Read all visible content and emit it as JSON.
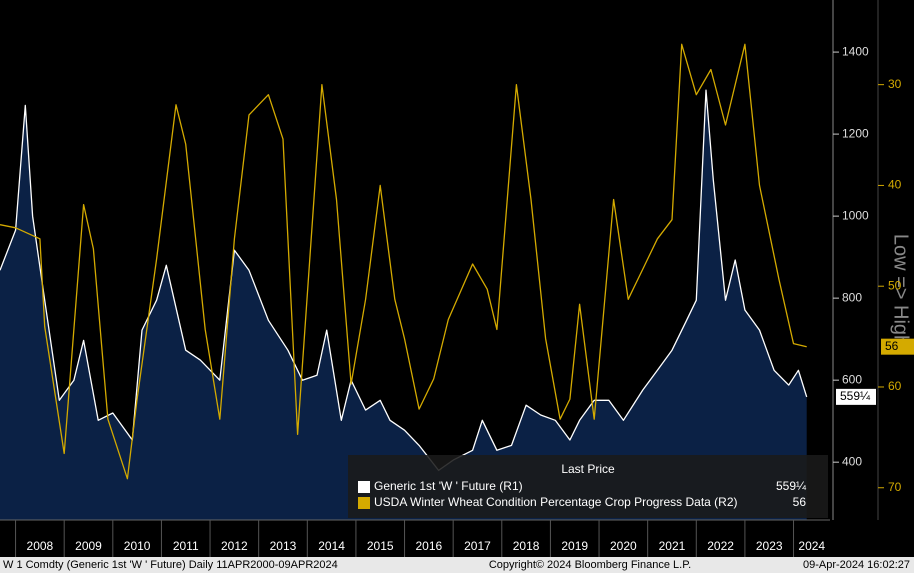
{
  "chart_data": {
    "type": "line",
    "legend_title": "Last Price",
    "axis_label_right": "Low => High",
    "footer_left": "W 1 Comdty (Generic 1st 'W ' Future)  Daily 11APR2000-09APR2024",
    "footer_center": "Copyright© 2024 Bloomberg Finance L.P.",
    "footer_right": "09-Apr-2024 16:02:27",
    "xlim": [
      2007.68,
      2024.75
    ],
    "xticks": [
      2008,
      2009,
      2010,
      2011,
      2012,
      2013,
      2014,
      2015,
      2016,
      2017,
      2018,
      2019,
      2020,
      2021,
      2022,
      2023,
      2024
    ],
    "ylim": [
      259,
      1527
    ],
    "yticks": [
      400,
      600,
      800,
      1000,
      1200,
      1400
    ],
    "y2lim": [
      73.2,
      21.6
    ],
    "y2ticks": [
      30,
      40,
      50,
      60,
      70
    ],
    "series": [
      {
        "name": "Generic 1st 'W ' Future  (R1)",
        "color": "#ffffff",
        "area_color": "#0b2145",
        "axis": "y",
        "last_label": "559¼",
        "x": [
          2007.68,
          2008.0,
          2008.2,
          2008.35,
          2008.6,
          2008.9,
          2009.2,
          2009.4,
          2009.7,
          2010.0,
          2010.4,
          2010.6,
          2010.9,
          2011.1,
          2011.5,
          2011.8,
          2012.2,
          2012.5,
          2012.8,
          2013.2,
          2013.6,
          2013.9,
          2014.2,
          2014.4,
          2014.7,
          2014.9,
          2015.2,
          2015.5,
          2015.7,
          2016.0,
          2016.3,
          2016.7,
          2017.0,
          2017.4,
          2017.6,
          2017.9,
          2018.2,
          2018.5,
          2018.8,
          2019.1,
          2019.4,
          2019.6,
          2019.9,
          2020.2,
          2020.5,
          2020.9,
          2021.2,
          2021.5,
          2021.8,
          2022.0,
          2022.2,
          2022.35,
          2022.6,
          2022.8,
          2023.0,
          2023.3,
          2023.6,
          2023.9,
          2024.1,
          2024.27
        ],
        "values": [
          868,
          966,
          1270,
          1000,
          795,
          551,
          600,
          697,
          502,
          520,
          454,
          722,
          795,
          880,
          673,
          649,
          600,
          917,
          868,
          746,
          673,
          600,
          612,
          722,
          502,
          600,
          527,
          551,
          502,
          478,
          441,
          380,
          405,
          429,
          502,
          429,
          441,
          539,
          515,
          502,
          454,
          502,
          551,
          551,
          502,
          576,
          624,
          673,
          746,
          795,
          1307,
          1088,
          795,
          893,
          771,
          722,
          624,
          588,
          624,
          559.25
        ]
      },
      {
        "name": "USDA Winter Wheat Condition Percentage Crop Progress Data  (R2)",
        "color": "#d4aa00",
        "axis": "y2",
        "last_label": "56",
        "x": [
          2007.68,
          2008.0,
          2008.5,
          2008.6,
          2009.0,
          2009.4,
          2009.6,
          2009.9,
          2010.3,
          2010.5,
          2010.9,
          2011.3,
          2011.5,
          2011.9,
          2012.2,
          2012.5,
          2012.8,
          2013.2,
          2013.5,
          2013.8,
          2014.3,
          2014.6,
          2014.9,
          2015.2,
          2015.5,
          2015.8,
          2016.0,
          2016.3,
          2016.6,
          2016.9,
          2017.4,
          2017.7,
          2017.9,
          2018.3,
          2018.6,
          2018.9,
          2019.2,
          2019.4,
          2019.6,
          2019.9,
          2020.3,
          2020.6,
          2020.9,
          2021.2,
          2021.5,
          2021.7,
          2022.0,
          2022.3,
          2022.6,
          2023.0,
          2023.3,
          2023.7,
          2024.0,
          2024.27
        ],
        "values": [
          43.9,
          44.2,
          45.3,
          54,
          66.6,
          41.9,
          46.3,
          63.2,
          69.1,
          61.2,
          47.3,
          32,
          35.9,
          54.3,
          63.2,
          45.3,
          33,
          31,
          35.4,
          64.7,
          30,
          41.4,
          59.7,
          51.3,
          40,
          51.3,
          55.2,
          62.2,
          59.2,
          53.3,
          47.8,
          50.3,
          54.3,
          30,
          41.4,
          55.2,
          63.2,
          61.2,
          51.8,
          63.2,
          41.4,
          51.3,
          48.3,
          45.3,
          43.4,
          26,
          31,
          28.5,
          34,
          26,
          40,
          49.3,
          55.7,
          56
        ]
      }
    ]
  }
}
